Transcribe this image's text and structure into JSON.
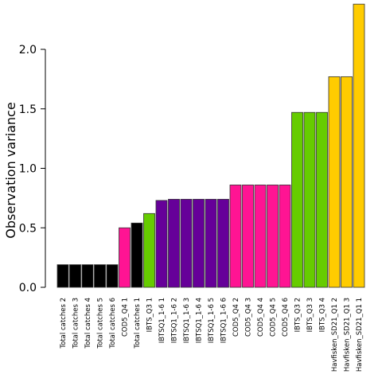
{
  "chart_data": {
    "type": "bar",
    "title": "",
    "xlabel": "",
    "ylabel": "Observation variance",
    "ylim": [
      0,
      2.4
    ],
    "yticks": [
      "0.0",
      "0.5",
      "1.0",
      "1.5",
      "2.0"
    ],
    "grid": false,
    "legend": "none",
    "categories": [
      "Total catches 2",
      "Total catches 3",
      "Total catches 4",
      "Total catches 5",
      "Total catches 6",
      "COD5_Q4 1",
      "Total catches 1",
      "IBTS_Q3 1",
      "IBTSQ1_1-6 1",
      "IBTSQ1_1-6 2",
      "IBTSQ1_1-6 3",
      "IBTSQ1_1-6 4",
      "IBTSQ1_1-6 5",
      "IBTSQ1_1-6 6",
      "COD5_Q4 2",
      "COD5_Q4 3",
      "COD5_Q4 4",
      "COD5_Q4 5",
      "COD5_Q4 6",
      "IBTS_Q3 2",
      "IBTS_Q3 3",
      "IBTS_Q3 4",
      "Havfisken_SD21_Q1 2",
      "Havfisken_SD21_Q1 3",
      "Havfisken_SD21_Q1 1"
    ],
    "values": [
      0.19,
      0.19,
      0.19,
      0.19,
      0.19,
      0.5,
      0.54,
      0.62,
      0.73,
      0.74,
      0.74,
      0.74,
      0.74,
      0.74,
      0.86,
      0.86,
      0.86,
      0.86,
      0.86,
      1.47,
      1.47,
      1.47,
      1.77,
      1.77,
      2.38
    ],
    "bar_colors": [
      "#000000",
      "#000000",
      "#000000",
      "#000000",
      "#000000",
      "#FF1493",
      "#000000",
      "#66CC00",
      "#660099",
      "#660099",
      "#660099",
      "#660099",
      "#660099",
      "#660099",
      "#FF1493",
      "#FF1493",
      "#FF1493",
      "#FF1493",
      "#FF1493",
      "#66CC00",
      "#66CC00",
      "#66CC00",
      "#FFCC00",
      "#FFCC00",
      "#FFCC00"
    ]
  }
}
